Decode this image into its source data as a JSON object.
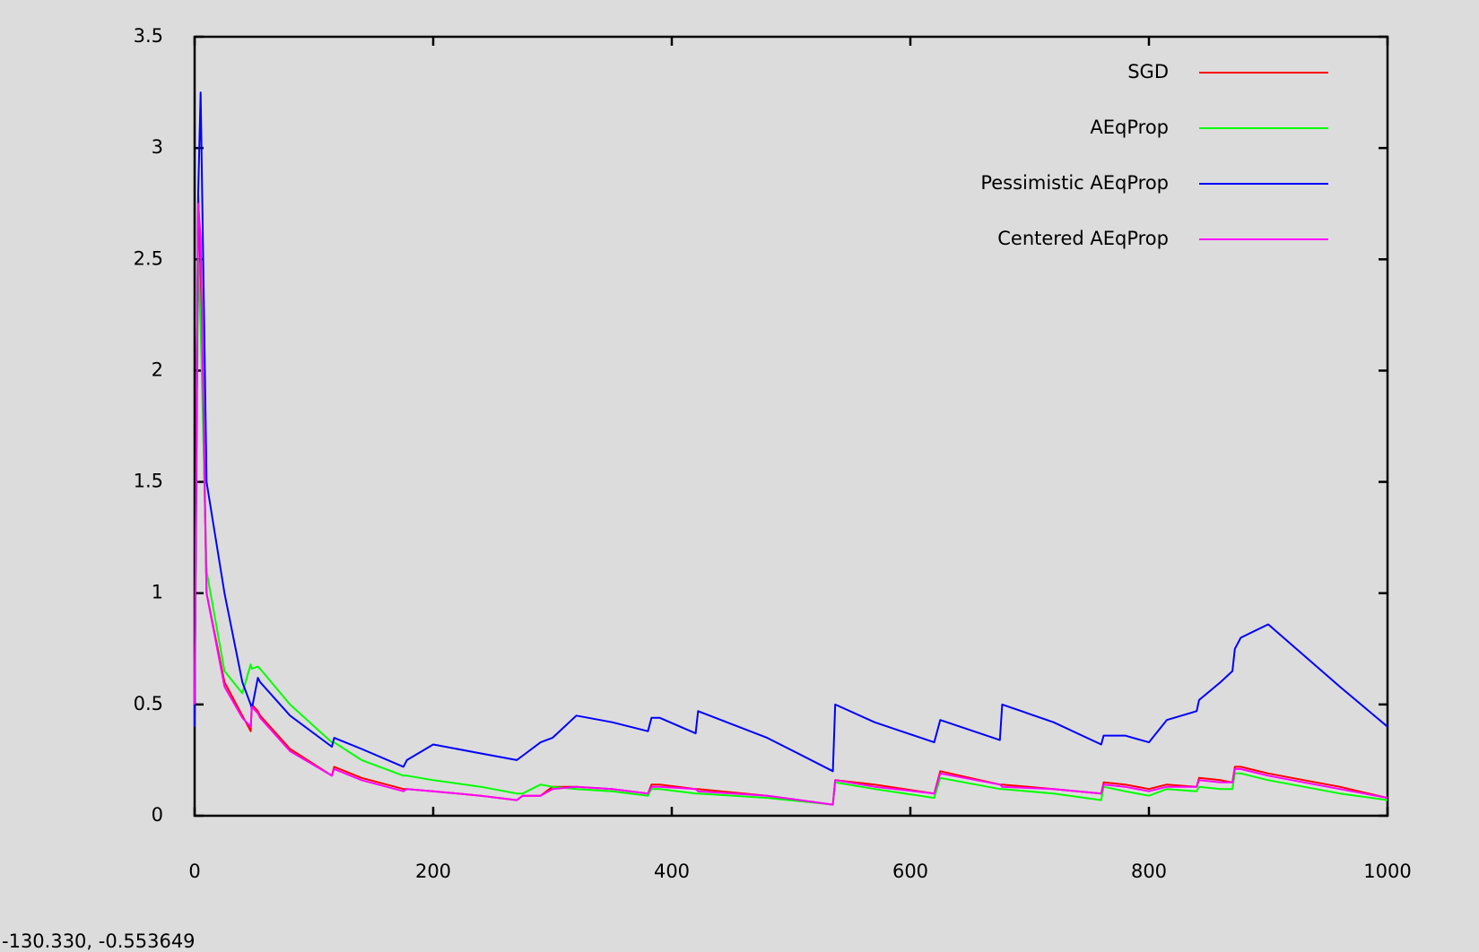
{
  "chart_data": {
    "type": "line",
    "x": [
      0,
      3,
      5,
      10,
      25,
      40,
      47,
      48,
      53,
      55,
      80,
      115,
      117,
      140,
      175,
      178,
      200,
      240,
      270,
      275,
      290,
      300,
      320,
      350,
      380,
      383,
      390,
      420,
      422,
      480,
      535,
      537,
      570,
      620,
      625,
      675,
      677,
      720,
      760,
      762,
      780,
      800,
      815,
      840,
      842,
      860,
      870,
      872,
      877,
      900,
      930,
      960,
      1000
    ],
    "series": [
      {
        "name": "SGD",
        "color": "#ff0000",
        "values": [
          0.5,
          2.8,
          2.4,
          1.0,
          0.6,
          0.45,
          0.38,
          0.5,
          0.47,
          0.45,
          0.3,
          0.18,
          0.22,
          0.17,
          0.12,
          0.12,
          0.11,
          0.09,
          0.07,
          0.09,
          0.09,
          0.13,
          0.13,
          0.12,
          0.1,
          0.14,
          0.14,
          0.12,
          0.12,
          0.09,
          0.05,
          0.16,
          0.14,
          0.1,
          0.2,
          0.14,
          0.14,
          0.12,
          0.1,
          0.15,
          0.14,
          0.12,
          0.14,
          0.13,
          0.17,
          0.16,
          0.15,
          0.22,
          0.22,
          0.19,
          0.16,
          0.13,
          0.08
        ]
      },
      {
        "name": "AEqProp",
        "color": "#00ff00",
        "values": [
          0.5,
          2.5,
          2.2,
          1.1,
          0.65,
          0.55,
          0.68,
          0.66,
          0.67,
          0.66,
          0.5,
          0.33,
          0.33,
          0.25,
          0.18,
          0.18,
          0.16,
          0.13,
          0.1,
          0.1,
          0.14,
          0.13,
          0.12,
          0.11,
          0.09,
          0.12,
          0.12,
          0.1,
          0.1,
          0.08,
          0.05,
          0.15,
          0.12,
          0.08,
          0.17,
          0.12,
          0.12,
          0.1,
          0.07,
          0.13,
          0.11,
          0.09,
          0.12,
          0.11,
          0.13,
          0.12,
          0.12,
          0.19,
          0.19,
          0.16,
          0.13,
          0.1,
          0.07
        ]
      },
      {
        "name": "Pessimistic AEqProp",
        "color": "#0000ff",
        "values": [
          0.4,
          2.8,
          3.25,
          1.5,
          1.0,
          0.6,
          0.5,
          0.48,
          0.62,
          0.6,
          0.45,
          0.31,
          0.35,
          0.3,
          0.22,
          0.25,
          0.32,
          0.28,
          0.25,
          0.27,
          0.33,
          0.35,
          0.45,
          0.42,
          0.38,
          0.44,
          0.44,
          0.37,
          0.47,
          0.35,
          0.2,
          0.5,
          0.42,
          0.33,
          0.43,
          0.34,
          0.5,
          0.42,
          0.32,
          0.36,
          0.36,
          0.33,
          0.43,
          0.47,
          0.52,
          0.6,
          0.65,
          0.75,
          0.8,
          0.86,
          0.72,
          0.58,
          0.4
        ]
      },
      {
        "name": "Centered AEqProp",
        "color": "#ff00ff",
        "values": [
          0.5,
          2.75,
          2.6,
          1.0,
          0.58,
          0.44,
          0.4,
          0.49,
          0.46,
          0.44,
          0.29,
          0.18,
          0.21,
          0.16,
          0.11,
          0.12,
          0.11,
          0.09,
          0.07,
          0.09,
          0.09,
          0.12,
          0.13,
          0.12,
          0.1,
          0.13,
          0.13,
          0.12,
          0.11,
          0.09,
          0.05,
          0.16,
          0.13,
          0.1,
          0.19,
          0.14,
          0.13,
          0.12,
          0.1,
          0.14,
          0.13,
          0.11,
          0.13,
          0.13,
          0.16,
          0.15,
          0.15,
          0.21,
          0.21,
          0.18,
          0.15,
          0.12,
          0.08
        ]
      }
    ],
    "xlim": [
      0,
      1000
    ],
    "xticks": [
      0,
      200,
      400,
      600,
      800,
      1000
    ],
    "ylim": [
      0,
      3.5
    ],
    "yticks": [
      0,
      0.5,
      1,
      1.5,
      2,
      2.5,
      3,
      3.5
    ],
    "legend": "upper right",
    "status_text": "-130.330, -0.553649"
  }
}
